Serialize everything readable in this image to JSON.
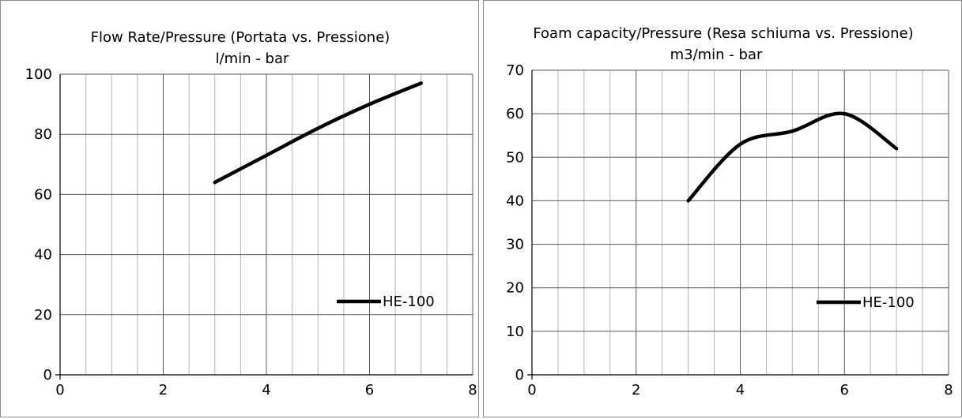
{
  "chart_data": [
    {
      "type": "line",
      "title": "Flow Rate/Pressure (Portata vs. Pressione)",
      "subtitle": "l/min - bar",
      "xlim": [
        0,
        8
      ],
      "ylim": [
        0,
        100
      ],
      "x_ticks": [
        0,
        2,
        4,
        6,
        8
      ],
      "y_ticks": [
        0,
        20,
        40,
        60,
        80,
        100
      ],
      "x_minor_step": 0.5,
      "grid": true,
      "legend": "lower-right",
      "series": [
        {
          "name": "HE-100",
          "color": "#000000",
          "x": [
            3,
            4,
            5,
            6,
            7
          ],
          "y": [
            64,
            73,
            82,
            90,
            97
          ]
        }
      ]
    },
    {
      "type": "line",
      "title": "Foam capacity/Pressure (Resa schiuma vs. Pressione)",
      "subtitle": "m3/min - bar",
      "xlim": [
        0,
        8
      ],
      "ylim": [
        0,
        70
      ],
      "x_ticks": [
        0,
        2,
        4,
        6,
        8
      ],
      "y_ticks": [
        0,
        10,
        20,
        30,
        40,
        50,
        60,
        70
      ],
      "x_minor_step": 0.5,
      "grid": true,
      "legend": "lower-right",
      "series": [
        {
          "name": "HE-100",
          "color": "#000000",
          "x": [
            3,
            4,
            5,
            6,
            7
          ],
          "y": [
            40,
            53,
            56,
            60,
            52
          ]
        }
      ]
    }
  ]
}
